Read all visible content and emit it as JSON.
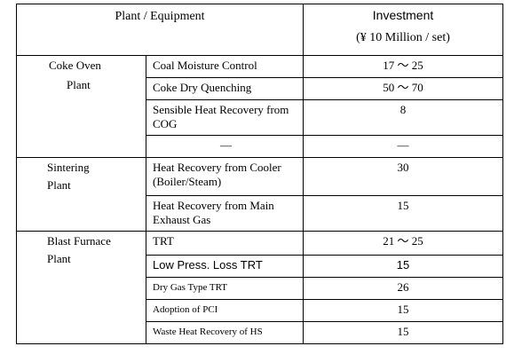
{
  "header": {
    "plant_equipment": "Plant / Equipment",
    "investment": "Investment",
    "investment_unit": "(¥ 10 Million / set)"
  },
  "groups": [
    {
      "plant_line1": "Coke Oven",
      "plant_line2": "Plant",
      "rows": [
        {
          "equipment": "Coal Moisture Control",
          "value": "17 ～ 25"
        },
        {
          "equipment": "Coke Dry Quenching",
          "value": "50 ～ 70"
        },
        {
          "equipment": "Sensible Heat Recovery from COG",
          "value": "8"
        },
        {
          "equipment": "—",
          "value": "—"
        }
      ]
    },
    {
      "plant_line1": "Sintering",
      "plant_line2": "Plant",
      "rows": [
        {
          "equipment": "Heat Recovery from Cooler (Boiler/Steam)",
          "value": "30"
        },
        {
          "equipment": "Heat Recovery from Main Exhaust Gas",
          "value": "15"
        }
      ]
    },
    {
      "plant_line1": "Blast Furnace",
      "plant_line2": "Plant",
      "rows": [
        {
          "equipment": "TRT",
          "value": "21 ～ 25"
        },
        {
          "equipment": "Low Press. Loss TRT",
          "value": "15"
        },
        {
          "equipment": "Dry Gas Type TRT",
          "value": "26"
        },
        {
          "equipment": "Adoption of PCI",
          "value": "15"
        },
        {
          "equipment": "Waste Heat Recovery of HS",
          "value": "15"
        }
      ]
    }
  ]
}
